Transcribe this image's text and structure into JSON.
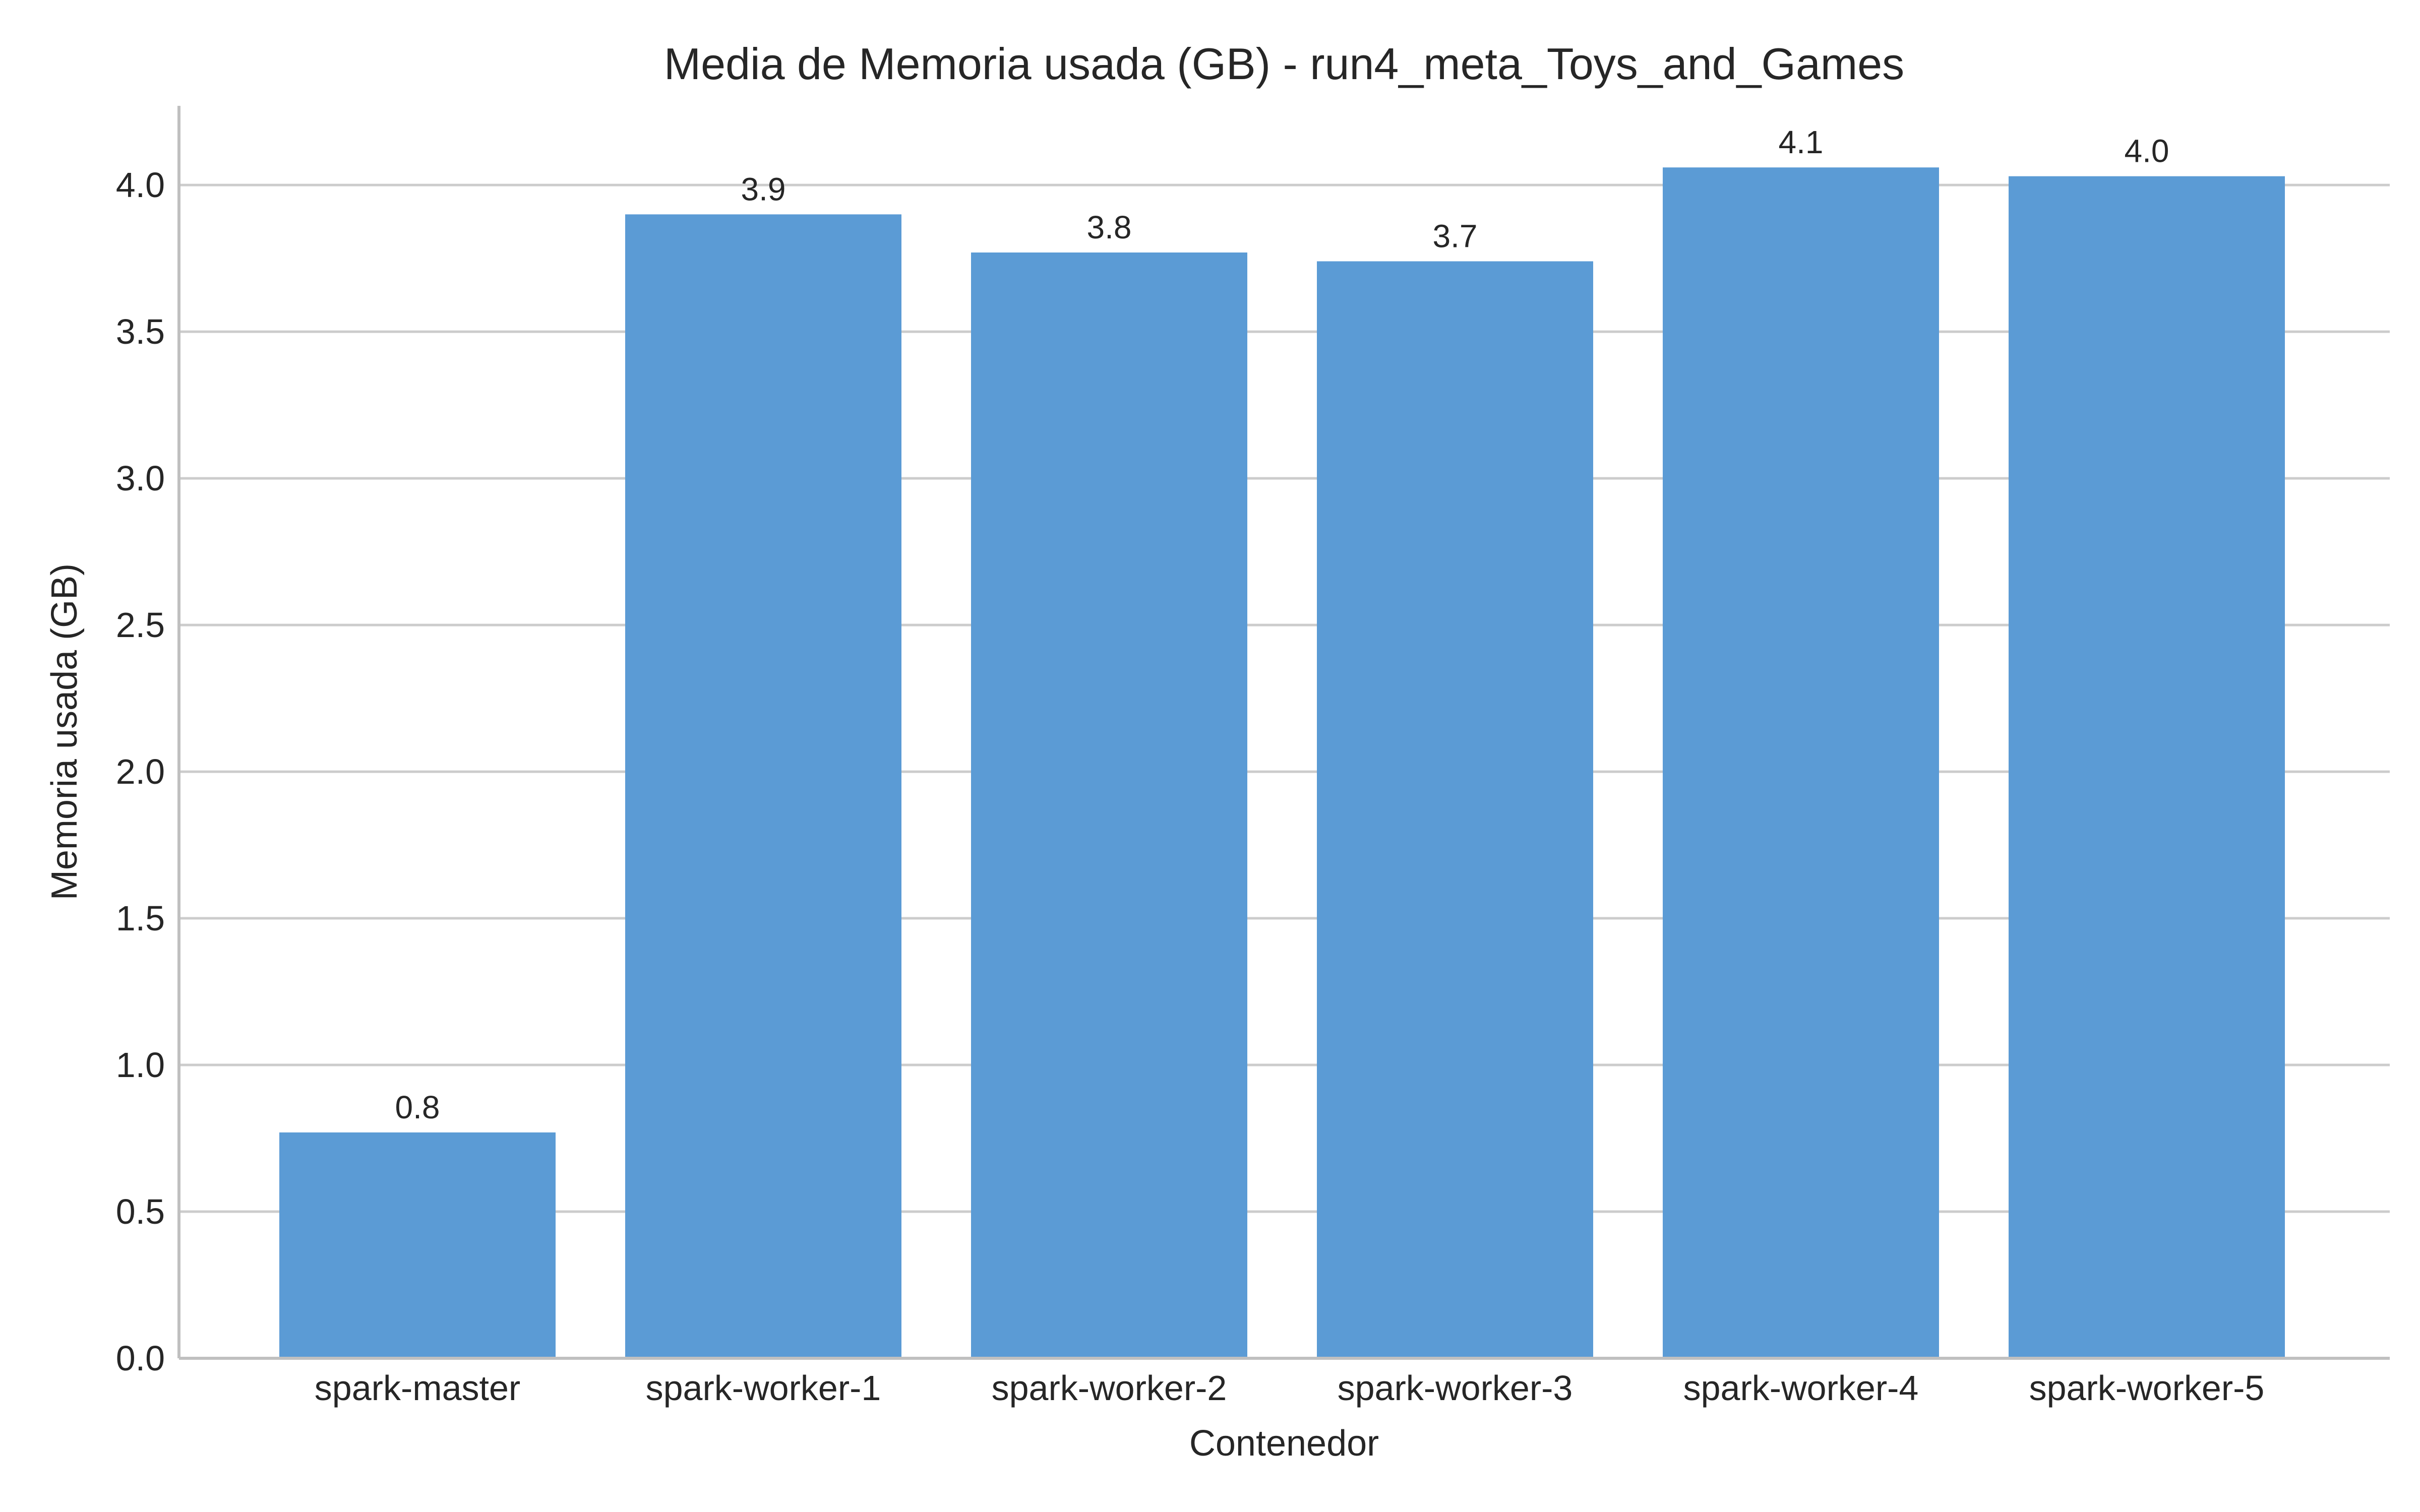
{
  "chart_data": {
    "type": "bar",
    "title": "Media de Memoria usada (GB) - run4_meta_Toys_and_Games",
    "xlabel": "Contenedor",
    "ylabel": "Memoria usada (GB)",
    "categories": [
      "spark-master",
      "spark-worker-1",
      "spark-worker-2",
      "spark-worker-3",
      "spark-worker-4",
      "spark-worker-5"
    ],
    "values": [
      0.77,
      3.9,
      3.77,
      3.74,
      4.06,
      4.03
    ],
    "data_labels": [
      "0.8",
      "3.9",
      "3.8",
      "3.7",
      "4.1",
      "4.0"
    ],
    "ylim": [
      0,
      4.27
    ],
    "yticks": [
      0.0,
      0.5,
      1.0,
      1.5,
      2.0,
      2.5,
      3.0,
      3.5,
      4.0
    ],
    "ytick_labels": [
      "0.0",
      "0.5",
      "1.0",
      "1.5",
      "2.0",
      "2.5",
      "3.0",
      "3.5",
      "4.0"
    ],
    "bar_color": "#5b9bd5",
    "grid": "horizontal",
    "legend": "none"
  }
}
